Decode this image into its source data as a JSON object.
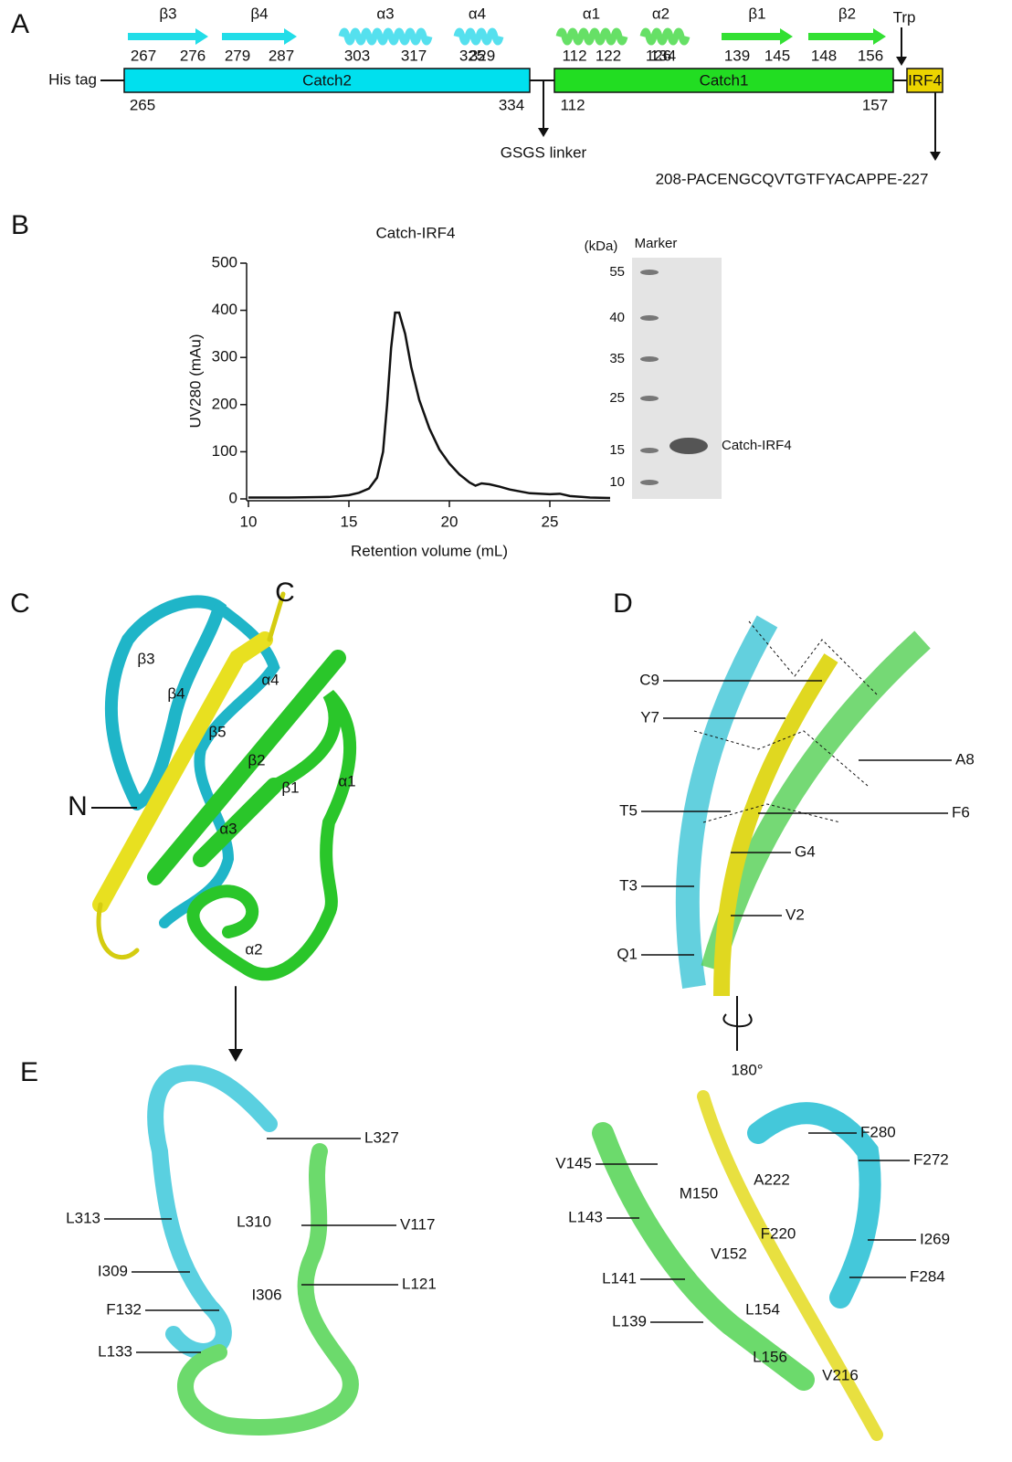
{
  "panel_labels": [
    "A",
    "B",
    "C",
    "D",
    "E"
  ],
  "construct": {
    "his_tag": "His tag",
    "domains": [
      {
        "name": "Catch2",
        "start": "265",
        "end": "334"
      },
      {
        "name": "Catch1",
        "start": "112",
        "end": "157"
      },
      {
        "name": "IRF4"
      }
    ],
    "elements": [
      {
        "label": "β3",
        "start": "267",
        "end": "276"
      },
      {
        "label": "β4",
        "start": "279",
        "end": "287"
      },
      {
        "label": "α3",
        "start": "303",
        "end": "317"
      },
      {
        "label": "α4",
        "start": "325",
        "end": "329"
      },
      {
        "label": "α1",
        "start": "112",
        "end": "122"
      },
      {
        "label": "α2",
        "start": "126",
        "end": "134"
      },
      {
        "label": "β1",
        "start": "139",
        "end": "145"
      },
      {
        "label": "β2",
        "start": "148",
        "end": "156"
      }
    ],
    "linker": "GSGS linker",
    "trp": "Trp",
    "sequence": "208-PACENGCQVTGTFYACAPPE-227"
  },
  "chart_data": {
    "type": "line",
    "title": "Catch-IRF4",
    "x_label": "Retention volume (mL)",
    "y_label": "UV280 (mAu)",
    "x": [
      10,
      12,
      14,
      15,
      15.5,
      16,
      16.4,
      16.7,
      16.9,
      17.1,
      17.3,
      17.5,
      17.8,
      18.1,
      18.5,
      19,
      19.5,
      20,
      20.5,
      21,
      21.3,
      21.6,
      22,
      22.5,
      23,
      24,
      25,
      25.5,
      26,
      27,
      28
    ],
    "series": [
      {
        "color": "#111111",
        "values": [
          3,
          3,
          4,
          8,
          13,
          22,
          45,
          100,
          200,
          320,
          395,
          395,
          350,
          280,
          210,
          150,
          105,
          75,
          52,
          35,
          28,
          33,
          31,
          26,
          20,
          12,
          10,
          11,
          6,
          3,
          2
        ]
      }
    ],
    "xlim": [
      10,
      28
    ],
    "ylim": [
      0,
      500
    ],
    "xticks": [
      10,
      15,
      20,
      25
    ],
    "yticks": [
      0,
      100,
      200,
      300,
      400,
      500
    ]
  },
  "gel": {
    "unit": "(kDa)",
    "marker": "Marker",
    "ladder": [
      55,
      40,
      35,
      25,
      15,
      10
    ],
    "band": "Catch-IRF4"
  },
  "panel_c": {
    "labels": [
      "C",
      "β3",
      "β4",
      "α4",
      "β5",
      "β2",
      "β1",
      "α1",
      "N",
      "α3",
      "α2"
    ]
  },
  "panel_d": {
    "labels": [
      "C9",
      "Y7",
      "A8",
      "F6",
      "T5",
      "G4",
      "T3",
      "V2",
      "Q1"
    ],
    "rotation": "180°"
  },
  "panel_e": {
    "left_labels": [
      "L327",
      "L313",
      "L310",
      "V117",
      "I309",
      "I306",
      "L121",
      "F132",
      "L133"
    ],
    "right_labels": [
      "F280",
      "V145",
      "F272",
      "A222",
      "M150",
      "L143",
      "I269",
      "F220",
      "V152",
      "L141",
      "F284",
      "L154",
      "L139",
      "L156",
      "V216"
    ]
  }
}
